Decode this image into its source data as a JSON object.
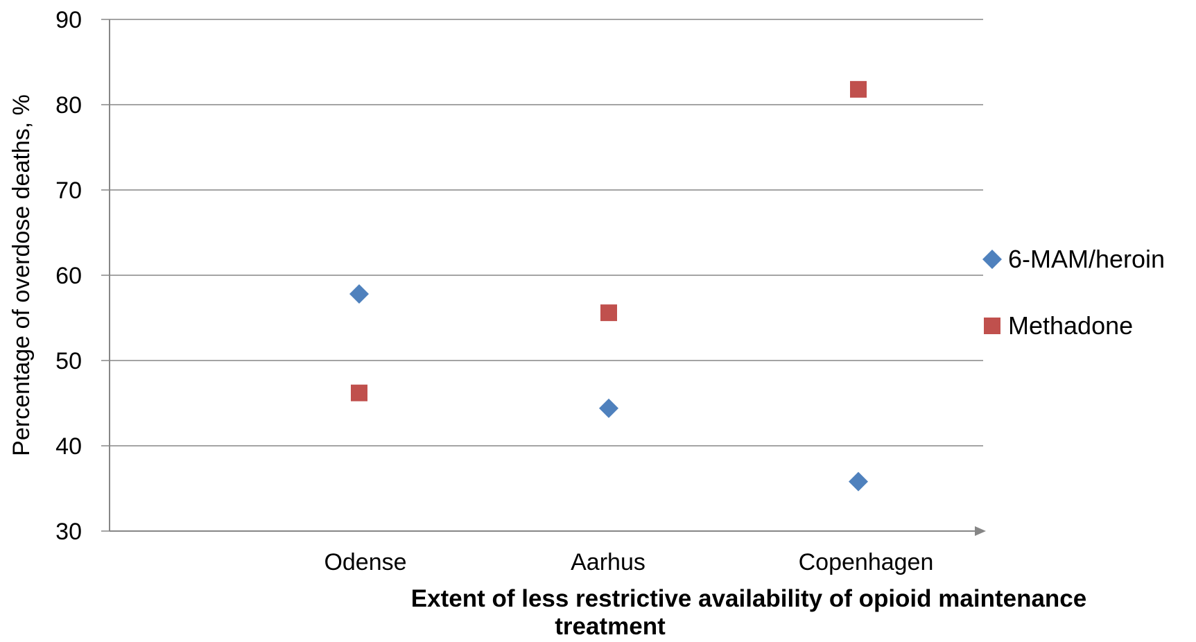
{
  "chart_data": {
    "type": "scatter",
    "categories": [
      "Odense",
      "Aarhus",
      "Copenhagen"
    ],
    "series": [
      {
        "name": "6-MAM/heroin",
        "marker": "diamond",
        "color": "#4f81bd",
        "values": [
          57.8,
          44.4,
          35.8
        ]
      },
      {
        "name": "Methadone",
        "marker": "square",
        "color": "#c0504d",
        "values": [
          46.2,
          55.6,
          81.8
        ]
      }
    ],
    "xlabel_lines": [
      "Extent of less restrictive availability of opioid maintenance",
      "treatment"
    ],
    "ylabel": "Percentage of overdose deaths, %",
    "ylim": [
      30,
      90
    ],
    "yticks": [
      30,
      40,
      50,
      60,
      70,
      80,
      90
    ],
    "grid": true,
    "legend_position": "right"
  }
}
